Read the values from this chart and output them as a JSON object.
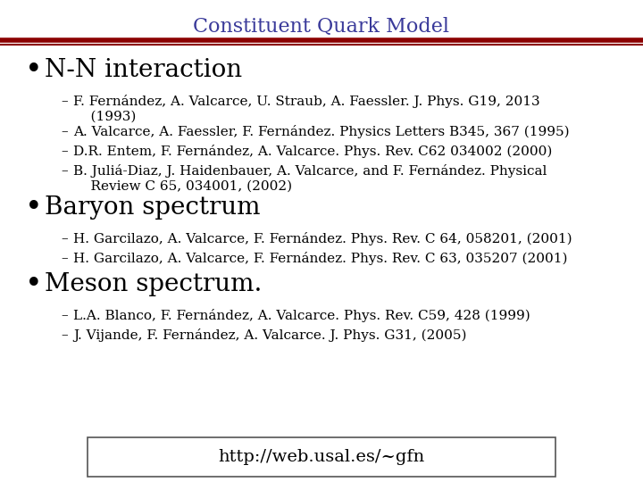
{
  "title": "Constituent Quark Model",
  "title_color": "#3a3a9a",
  "background_color": "#ffffff",
  "header_line_color1": "#8b0000",
  "header_line_color2": "#8b0000",
  "bullet1": "N-N interaction",
  "bullet1_items": [
    "F. Fernández, A. Valcarce, U. Straub, A. Faessler. J. Phys. G19, 2013\n    (1993)",
    "A. Valcarce, A. Faessler, F. Fernández. Physics Letters B345, 367 (1995)",
    "D.R. Entem, F. Fernández, A. Valcarce. Phys. Rev. C62 034002 (2000)",
    "B. Juliá-Diaz, J. Haidenbauer, A. Valcarce, and F. Fernández. Physical\n    Review C 65, 034001, (2002)"
  ],
  "bullet2": "Baryon spectrum",
  "bullet2_items": [
    "H. Garcilazo, A. Valcarce, F. Fernández. Phys. Rev. C 64, 058201, (2001)",
    "H. Garcilazo, A. Valcarce, F. Fernández. Phys. Rev. C 63, 035207 (2001)"
  ],
  "bullet3": "Meson spectrum.",
  "bullet3_items": [
    "L.A. Blanco, F. Fernández, A. Valcarce. Phys. Rev. C59, 428 (1999)",
    "J. Vijande, F. Fernández, A. Valcarce. J. Phys. G31, (2005)"
  ],
  "url": "http://web.usal.es/~gfn",
  "text_color": "#000000",
  "title_fontsize": 16,
  "bullet_fontsize": 20,
  "sub_fontsize": 11,
  "url_fontsize": 14
}
